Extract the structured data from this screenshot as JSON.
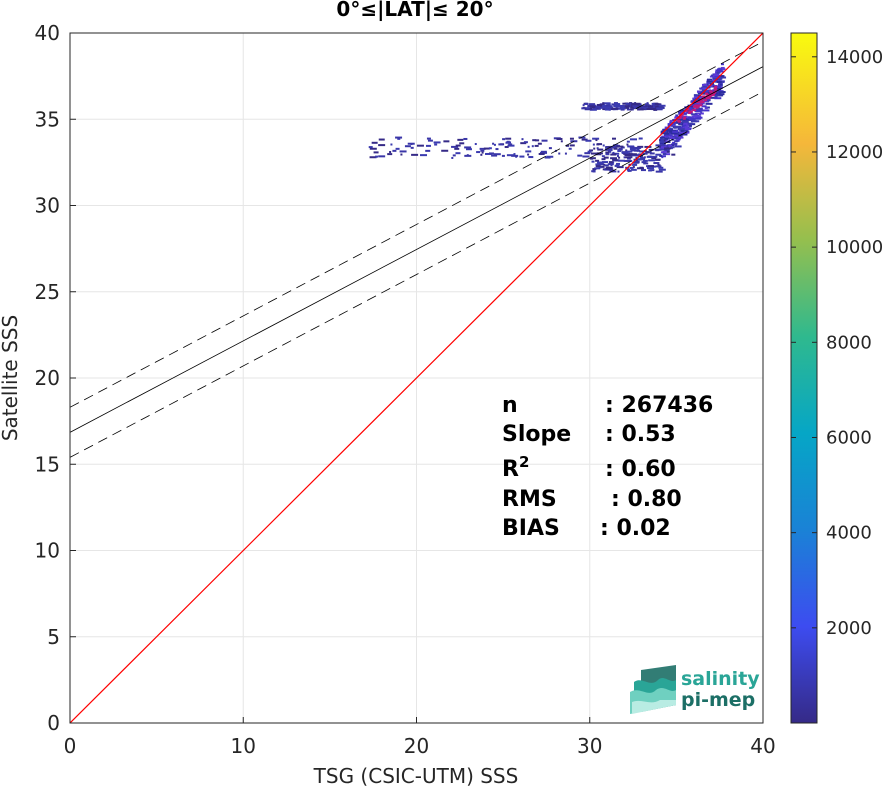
{
  "chart_data": {
    "type": "scatter",
    "title": "0°≤|LAT|≤ 20°",
    "xlabel": "TSG (CSIC-UTM) SSS",
    "ylabel": "Satellite SSS",
    "xlim": [
      0,
      40
    ],
    "ylim": [
      0,
      40
    ],
    "x_ticks": [
      "0",
      "10",
      "20",
      "30",
      "40"
    ],
    "y_ticks": [
      "0",
      "5",
      "10",
      "15",
      "20",
      "25",
      "30",
      "35",
      "40"
    ],
    "grid": true,
    "colorbar": {
      "range": [
        0,
        14500
      ],
      "ticks": [
        "2000",
        "4000",
        "6000",
        "8000",
        "10000",
        "12000",
        "14000"
      ],
      "colormap": "parula"
    },
    "reference_line": {
      "name": "1:1",
      "slope": 1,
      "intercept": 0,
      "color": "#ff0000"
    },
    "regression_line": {
      "slope": 0.53,
      "intercept": 16.85,
      "color": "#000000"
    },
    "confidence_band": {
      "offset": 1.45,
      "style": "dashed"
    },
    "density_clusters": [
      {
        "x": [
          34.0,
          37.6
        ],
        "y": [
          33.5,
          37.5
        ],
        "level": "high"
      },
      {
        "x": [
          17.2,
          35.0
        ],
        "y": [
          32.8,
          34.0
        ],
        "level": "low"
      },
      {
        "x": [
          30.0,
          34.0
        ],
        "y": [
          32.0,
          33.5
        ],
        "level": "low"
      },
      {
        "x": [
          29.5,
          34.0
        ],
        "y": [
          35.6,
          36.0
        ],
        "level": "low"
      }
    ],
    "stats": [
      {
        "label": "n",
        "value": ": 267436"
      },
      {
        "label": "Slope",
        "value": ": 0.53"
      },
      {
        "label": "R",
        "sup": "2",
        "value": ": 0.60"
      },
      {
        "label": "RMS",
        "value": ": 0.80"
      },
      {
        "label": "BIAS",
        "value": ": 0.02"
      }
    ]
  },
  "logo": {
    "line1": "salinity",
    "line2": "pi-mep",
    "color1": "#2aa597",
    "color2": "#1c6f66"
  }
}
